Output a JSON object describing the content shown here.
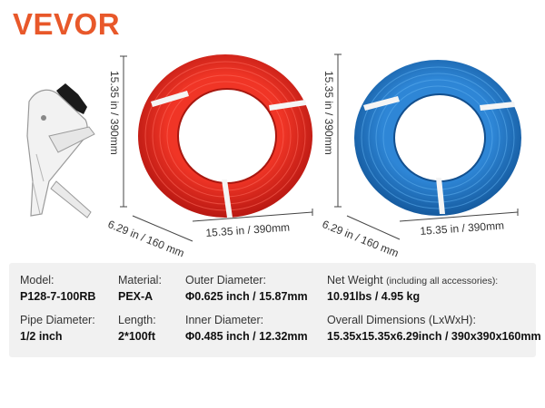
{
  "brand": {
    "logo_text": "VEVOR",
    "color": "#e8582a"
  },
  "red_coil": {
    "color": "#e02b1f",
    "height_label": "15.35 in / 390mm",
    "depth_label": "6.29 in / 160 mm",
    "width_label": "15.35 in / 390mm"
  },
  "blue_coil": {
    "color": "#1f74c6",
    "height_label": "15.35 in / 390mm",
    "depth_label": "6.29 in / 160 mm",
    "width_label": "15.35 in / 390mm"
  },
  "specs": {
    "model": {
      "label": "Model:",
      "value": "P128-7-100RB"
    },
    "pipe_diameter": {
      "label": "Pipe Diameter:",
      "value": "1/2 inch"
    },
    "material": {
      "label": "Material:",
      "value": "PEX-A"
    },
    "length": {
      "label": "Length:",
      "value": "2*100ft"
    },
    "outer_diameter": {
      "label": "Outer Diameter:",
      "value": "Φ0.625 inch / 15.87mm"
    },
    "inner_diameter": {
      "label": "Inner Diameter:",
      "value": "Φ0.485 inch / 12.32mm"
    },
    "net_weight": {
      "label": "Net Weight",
      "label_note": "(including all accessories):",
      "value": "10.91lbs / 4.95 kg"
    },
    "overall_dimensions": {
      "label": "Overall Dimensions (LxWxH):",
      "value": "15.35x15.35x6.29inch / 390x390x160mm"
    }
  }
}
